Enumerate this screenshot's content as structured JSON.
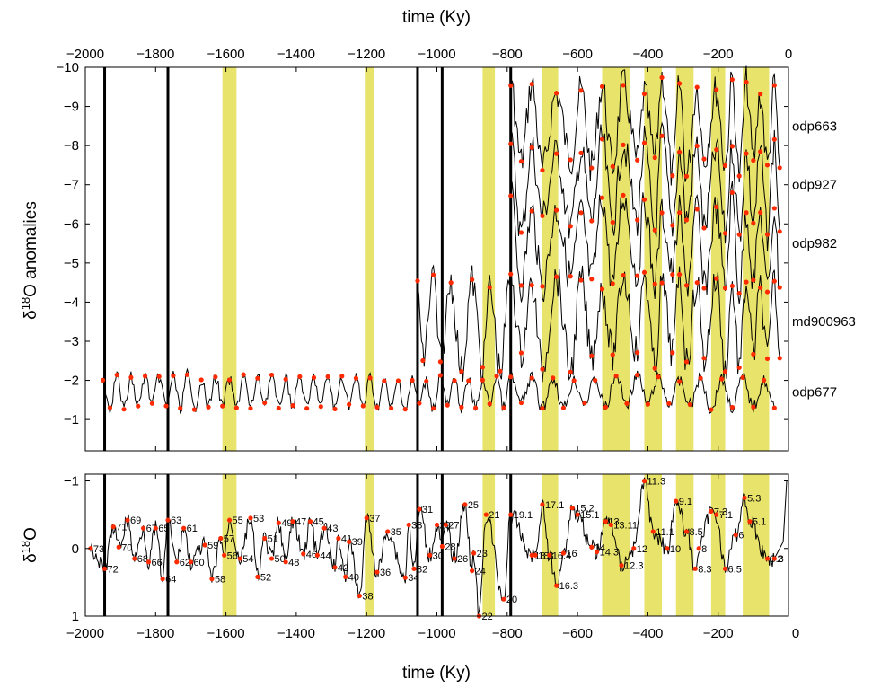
{
  "chart_data": [
    {
      "type": "line",
      "xlabel_top": "time (Ky)",
      "ylabel": "δ18O anomalies",
      "xlim": [
        -2000,
        0
      ],
      "ylim": [
        -10,
        -0.2
      ],
      "y_reversed": true,
      "grid": false,
      "x_ticks": [
        -2000,
        -1800,
        -1600,
        -1400,
        -1200,
        -1000,
        -800,
        -600,
        -400,
        -200,
        0
      ],
      "y_ticks": [
        -10,
        -9,
        -8,
        -7,
        -6,
        -5,
        -4,
        -3,
        -2,
        -1
      ],
      "x_tick_labels": [
        "−2000",
        "−1800",
        "−1600",
        "−1400",
        "−1200",
        "−1000",
        "−800",
        "−600",
        "−400",
        "−200",
        "0"
      ],
      "y_tick_labels": [
        "−10",
        "−9",
        "−8",
        "−7",
        "−6",
        "−5",
        "−4",
        "−3",
        "−2",
        "−1"
      ],
      "vertical_lines": [
        -1945,
        -1765,
        -1055,
        -985,
        -790
      ],
      "shaded_bands": [
        [
          -1610,
          -1570
        ],
        [
          -1205,
          -1180
        ],
        [
          -870,
          -835
        ],
        [
          -700,
          -655
        ],
        [
          -530,
          -450
        ],
        [
          -410,
          -360
        ],
        [
          -320,
          -270
        ],
        [
          -220,
          -180
        ],
        [
          -130,
          -55
        ]
      ],
      "series": [
        {
          "name": "odp663",
          "x_start": -790,
          "x_end": -25,
          "offset": -8.5,
          "min_points": [
            -760,
            -700,
            -620,
            -560,
            -500,
            -430,
            -380,
            -330,
            -290,
            -240,
            -180,
            -140,
            -100,
            -60,
            -25
          ],
          "max_points": [
            -790,
            -730,
            -660,
            -590,
            -530,
            -470,
            -410,
            -360,
            -310,
            -260,
            -205,
            -160,
            -120,
            -80,
            -40
          ]
        },
        {
          "name": "odp927",
          "x_start": -790,
          "x_end": -25,
          "offset": -7.0,
          "min_points": [
            -760,
            -700,
            -620,
            -560,
            -500,
            -430,
            -380,
            -330,
            -290,
            -240,
            -180,
            -140,
            -100,
            -60,
            -25
          ],
          "max_points": [
            -790,
            -730,
            -660,
            -590,
            -530,
            -470,
            -410,
            -360,
            -310,
            -260,
            -205,
            -160,
            -120,
            -80,
            -40
          ]
        },
        {
          "name": "odp982",
          "x_start": -790,
          "x_end": -25,
          "offset": -5.5,
          "min_points": [
            -760,
            -700,
            -620,
            -560,
            -500,
            -430,
            -380,
            -330,
            -290,
            -240,
            -180,
            -140,
            -100,
            -60,
            -25
          ],
          "max_points": [
            -790,
            -730,
            -660,
            -590,
            -530,
            -470,
            -410,
            -360,
            -310,
            -260,
            -205,
            -160,
            -120,
            -80,
            -40
          ]
        },
        {
          "name": "md900963",
          "x_start": -1055,
          "x_end": -25,
          "offset": -3.5,
          "min_points": [
            -1040,
            -990,
            -930,
            -870,
            -820,
            -760,
            -700,
            -620,
            -560,
            -500,
            -430,
            -380,
            -330,
            -290,
            -240,
            -180,
            -140,
            -100,
            -60,
            -25
          ],
          "max_points": [
            -1055,
            -1010,
            -960,
            -900,
            -850,
            -790,
            -730,
            -660,
            -590,
            -530,
            -470,
            -410,
            -360,
            -310,
            -260,
            -205,
            -160,
            -120,
            -80,
            -40
          ]
        },
        {
          "name": "odp677",
          "x_start": -1950,
          "x_end": -25,
          "offset": -1.7,
          "min_points": [
            -1930,
            -1890,
            -1850,
            -1810,
            -1770,
            -1730,
            -1690,
            -1650,
            -1610,
            -1570,
            -1530,
            -1490,
            -1450,
            -1410,
            -1370,
            -1330,
            -1290,
            -1250,
            -1210,
            -1170,
            -1130,
            -1090,
            -1050,
            -1010,
            -970,
            -930,
            -890,
            -850,
            -810,
            -760,
            -700,
            -640,
            -580,
            -520,
            -460,
            -400,
            -340,
            -280,
            -220,
            -160,
            -100,
            -40
          ],
          "max_points": [
            -1950,
            -1910,
            -1870,
            -1830,
            -1790,
            -1750,
            -1710,
            -1670,
            -1630,
            -1590,
            -1550,
            -1510,
            -1470,
            -1430,
            -1390,
            -1350,
            -1310,
            -1270,
            -1230,
            -1190,
            -1150,
            -1110,
            -1070,
            -1030,
            -990,
            -950,
            -910,
            -870,
            -830,
            -790,
            -730,
            -670,
            -610,
            -550,
            -490,
            -430,
            -370,
            -310,
            -250,
            -190,
            -130,
            -70
          ]
        }
      ]
    },
    {
      "type": "line",
      "xlabel": "time (Ky)",
      "ylabel": "δ18O",
      "xlim": [
        -2000,
        0
      ],
      "ylim": [
        -1.1,
        1
      ],
      "y_reversed": true,
      "grid": false,
      "x_ticks": [
        -2000,
        -1800,
        -1600,
        -1400,
        -1200,
        -1000,
        -800,
        -600,
        -400,
        -200,
        0
      ],
      "y_ticks": [
        -1,
        0,
        1
      ],
      "x_tick_labels": [
        "−2000",
        "−1800",
        "−1600",
        "−1400",
        "−1200",
        "−1000",
        "−800",
        "−600",
        "−400",
        "−200",
        "0"
      ],
      "y_tick_labels": [
        "−1",
        "0",
        "1"
      ],
      "stage_labels": [
        {
          "label": "73",
          "x": -1985,
          "y": 0.0
        },
        {
          "label": "72",
          "x": -1945,
          "y": 0.3
        },
        {
          "label": "71",
          "x": -1920,
          "y": -0.32
        },
        {
          "label": "70",
          "x": -1905,
          "y": -0.02
        },
        {
          "label": "69",
          "x": -1880,
          "y": -0.42
        },
        {
          "label": "68",
          "x": -1860,
          "y": 0.15
        },
        {
          "label": "67",
          "x": -1835,
          "y": -0.3
        },
        {
          "label": "66",
          "x": -1820,
          "y": 0.2
        },
        {
          "label": "65",
          "x": -1800,
          "y": -0.3
        },
        {
          "label": "64",
          "x": -1780,
          "y": 0.45
        },
        {
          "label": "63",
          "x": -1765,
          "y": -0.42
        },
        {
          "label": "62",
          "x": -1740,
          "y": 0.2
        },
        {
          "label": "61",
          "x": -1720,
          "y": -0.3
        },
        {
          "label": "60",
          "x": -1700,
          "y": 0.2
        },
        {
          "label": "59",
          "x": -1660,
          "y": -0.05
        },
        {
          "label": "58",
          "x": -1640,
          "y": 0.45
        },
        {
          "label": "57",
          "x": -1615,
          "y": -0.15
        },
        {
          "label": "56",
          "x": -1605,
          "y": 0.1
        },
        {
          "label": "55",
          "x": -1590,
          "y": -0.42
        },
        {
          "label": "54",
          "x": -1560,
          "y": 0.15
        },
        {
          "label": "53",
          "x": -1530,
          "y": -0.45
        },
        {
          "label": "52",
          "x": -1510,
          "y": 0.42
        },
        {
          "label": "51",
          "x": -1490,
          "y": -0.15
        },
        {
          "label": "50",
          "x": -1470,
          "y": 0.15
        },
        {
          "label": "49",
          "x": -1450,
          "y": -0.38
        },
        {
          "label": "48",
          "x": -1430,
          "y": 0.2
        },
        {
          "label": "47",
          "x": -1410,
          "y": -0.4
        },
        {
          "label": "46",
          "x": -1380,
          "y": 0.08
        },
        {
          "label": "45",
          "x": -1360,
          "y": -0.4
        },
        {
          "label": "44",
          "x": -1340,
          "y": 0.1
        },
        {
          "label": "43",
          "x": -1320,
          "y": -0.3
        },
        {
          "label": "42",
          "x": -1290,
          "y": 0.28
        },
        {
          "label": "41",
          "x": -1280,
          "y": -0.15
        },
        {
          "label": "40",
          "x": -1260,
          "y": 0.42
        },
        {
          "label": "39",
          "x": -1250,
          "y": -0.1
        },
        {
          "label": "38",
          "x": -1220,
          "y": 0.7
        },
        {
          "label": "37",
          "x": -1200,
          "y": -0.45
        },
        {
          "label": "36",
          "x": -1170,
          "y": 0.35
        },
        {
          "label": "35",
          "x": -1140,
          "y": -0.25
        },
        {
          "label": "34",
          "x": -1090,
          "y": 0.43
        },
        {
          "label": "33",
          "x": -1080,
          "y": -0.35
        },
        {
          "label": "32",
          "x": -1065,
          "y": 0.3
        },
        {
          "label": "31",
          "x": -1050,
          "y": -0.58
        },
        {
          "label": "30",
          "x": -1020,
          "y": 0.1
        },
        {
          "label": "29",
          "x": -1000,
          "y": -0.35
        },
        {
          "label": "28",
          "x": -985,
          "y": -0.03
        },
        {
          "label": "27",
          "x": -975,
          "y": -0.35
        },
        {
          "label": "26",
          "x": -950,
          "y": 0.15
        },
        {
          "label": "25",
          "x": -920,
          "y": -0.65
        },
        {
          "label": "24",
          "x": -900,
          "y": 0.33
        },
        {
          "label": "23",
          "x": -895,
          "y": 0.07
        },
        {
          "label": "22",
          "x": -880,
          "y": 1.0
        },
        {
          "label": "21",
          "x": -860,
          "y": -0.5
        },
        {
          "label": "20",
          "x": -810,
          "y": 0.75
        },
        {
          "label": "19.1",
          "x": -790,
          "y": -0.5
        },
        {
          "label": "18.3",
          "x": -730,
          "y": 0.1
        },
        {
          "label": "18",
          "x": -720,
          "y": 0.1
        },
        {
          "label": "17.1",
          "x": -700,
          "y": -0.65
        },
        {
          "label": "16.4",
          "x": -680,
          "y": 0.1
        },
        {
          "label": "16.3",
          "x": -660,
          "y": 0.55
        },
        {
          "label": "16",
          "x": -640,
          "y": 0.07
        },
        {
          "label": "15.2",
          "x": -615,
          "y": -0.6
        },
        {
          "label": "15.1",
          "x": -600,
          "y": -0.5
        },
        {
          "label": "14",
          "x": -560,
          "y": -0.02
        },
        {
          "label": "14.3",
          "x": -545,
          "y": 0.05
        },
        {
          "label": "13",
          "x": -520,
          "y": -0.4
        },
        {
          "label": "13.11",
          "x": -505,
          "y": -0.35
        },
        {
          "label": "12.3",
          "x": -475,
          "y": 0.25
        },
        {
          "label": "12",
          "x": -440,
          "y": 0.0
        },
        {
          "label": "11.3",
          "x": -410,
          "y": -1.0
        },
        {
          "label": "11.1",
          "x": -385,
          "y": -0.25
        },
        {
          "label": "10",
          "x": -345,
          "y": 0.0
        },
        {
          "label": "9.1",
          "x": -320,
          "y": -0.7
        },
        {
          "label": "8.5",
          "x": -290,
          "y": -0.25
        },
        {
          "label": "8.3",
          "x": -265,
          "y": 0.3
        },
        {
          "label": "8",
          "x": -255,
          "y": 0.0
        },
        {
          "label": "7.3",
          "x": -220,
          "y": -0.55
        },
        {
          "label": "7.1",
          "x": -205,
          "y": -0.5
        },
        {
          "label": "6.5",
          "x": -180,
          "y": 0.3
        },
        {
          "label": "6",
          "x": -150,
          "y": -0.2
        },
        {
          "label": "5.3",
          "x": -125,
          "y": -0.75
        },
        {
          "label": "5.1",
          "x": -110,
          "y": -0.4
        },
        {
          "label": "3.3",
          "x": -60,
          "y": 0.15
        },
        {
          "label": "2",
          "x": -40,
          "y": 0.15
        }
      ]
    }
  ]
}
